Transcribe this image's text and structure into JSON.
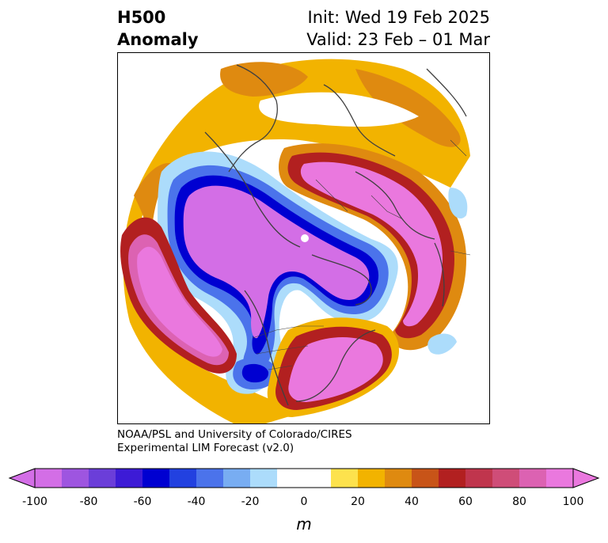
{
  "title": {
    "line1": "H500",
    "line2": "Anomaly",
    "init": "Init: Wed 19 Feb 2025",
    "valid": "Valid: 23 Feb – 01 Mar"
  },
  "credit": {
    "line1": "NOAA/PSL and University of Colorado/CIRES",
    "line2": "Experimental LIM Forecast (v2.0)"
  },
  "colorbar": {
    "units": "m",
    "ticks": [
      "-100",
      "-80",
      "-60",
      "-40",
      "-20",
      "0",
      "20",
      "40",
      "60",
      "80",
      "100"
    ],
    "colors": [
      "#d36ee6",
      "#9e55e0",
      "#6b3ed9",
      "#3d1bd6",
      "#0000d1",
      "#2241e0",
      "#4b73eb",
      "#78adf2",
      "#acdcfb",
      "#ffffff",
      "#ffffff",
      "#fde24d",
      "#f2b300",
      "#df8a10",
      "#c85418",
      "#b22020",
      "#c0354d",
      "#cf4d78",
      "#dc62b2",
      "#ea78de"
    ],
    "under_color": "#d36ee6",
    "over_color": "#ea78de"
  }
}
